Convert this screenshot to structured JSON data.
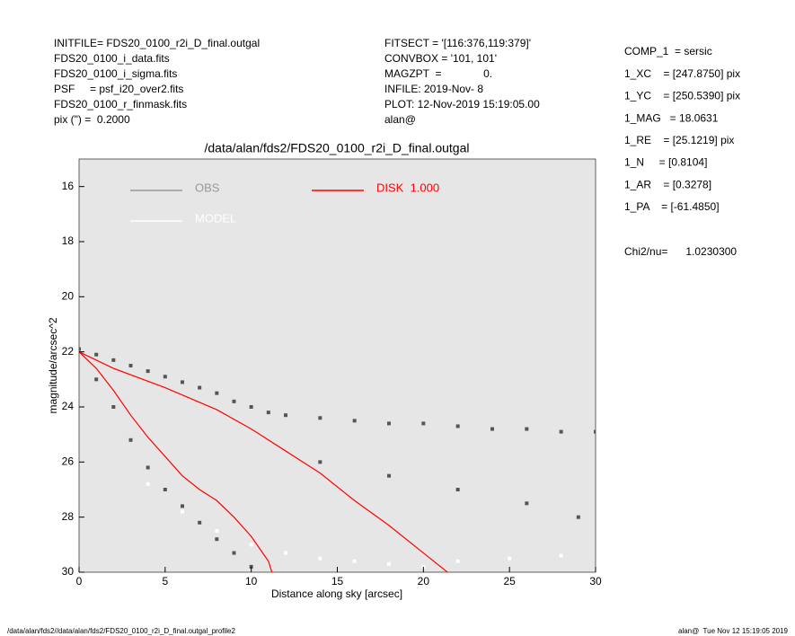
{
  "header": {
    "left": [
      "INITFILE= FDS20_0100_r2i_D_final.outgal",
      "FDS20_0100_i_data.fits",
      "FDS20_0100_i_sigma.fits",
      "PSF     = psf_i20_over2.fits",
      "FDS20_0100_r_finmask.fits",
      "pix (\") =  0.2000"
    ],
    "middle": [
      "FITSECT = '[116:376,119:379]'",
      "CONVBOX = '101, 101'",
      "MAGZPT  =              0.",
      "INFILE: 2019-Nov- 8",
      "PLOT: 12-Nov-2019 15:19:05.00",
      "alan@"
    ],
    "right": [
      "COMP_1  = sersic",
      "1_XC    = [247.8750] pix",
      "1_YC    = [250.5390] pix",
      "1_MAG   = 18.0631",
      "1_RE    = [25.1219] pix",
      "1_N     = [0.8104]",
      "1_AR    = [0.3278]",
      "1_PA    = [-61.4850]"
    ],
    "chi": "Chi2/nu=      1.0230300"
  },
  "footer": {
    "left": "/data/alan/fds2//data/alan/fds2/FDS20_0100_r2i_D_final.outgal_profile2",
    "right": "alan@  Tue Nov 12 15:19:05 2019"
  },
  "chart_data": {
    "type": "scatter",
    "title": "/data/alan/fds2/FDS20_0100_r2i_D_final.outgal",
    "xlabel": "Distance along sky [arcsec]",
    "ylabel": "magnitude/arcsec^2",
    "xlim": [
      0,
      30
    ],
    "xticks": [
      0,
      5,
      10,
      15,
      20,
      25,
      30
    ],
    "ylim": [
      30,
      15
    ],
    "yticks": [
      16,
      18,
      20,
      22,
      24,
      26,
      28,
      30
    ],
    "background": "#e6e6e6",
    "series": [
      {
        "name": "OBS",
        "color": "#555555",
        "legend_color": "#999999",
        "style": "points",
        "x": [
          0,
          1,
          2,
          3,
          4,
          5,
          6,
          7,
          8,
          9,
          10,
          11,
          12,
          14,
          16,
          18,
          20,
          22,
          24,
          26,
          28,
          30,
          1,
          2,
          3,
          4,
          5,
          6,
          7,
          8,
          9,
          10,
          14,
          18,
          22,
          26,
          29
        ],
        "values": [
          21.9,
          22.1,
          22.3,
          22.5,
          22.7,
          22.9,
          23.1,
          23.3,
          23.5,
          23.8,
          24.0,
          24.2,
          24.3,
          24.4,
          24.5,
          24.6,
          24.6,
          24.7,
          24.8,
          24.8,
          24.9,
          24.9,
          23.0,
          24.0,
          25.2,
          26.2,
          27.0,
          27.6,
          28.2,
          28.8,
          29.3,
          29.8,
          26.0,
          26.5,
          27.0,
          27.5,
          28.0
        ]
      },
      {
        "name": "MODEL",
        "color": "#ffffff",
        "legend_color": "#ffffff",
        "style": "points",
        "x": [
          4,
          6,
          8,
          10,
          12,
          14,
          16,
          18,
          20,
          22,
          25,
          28
        ],
        "values": [
          26.8,
          27.8,
          28.5,
          29.0,
          29.3,
          29.5,
          29.6,
          29.7,
          29.8,
          29.6,
          29.5,
          29.4
        ]
      },
      {
        "name": "DISK  1.000",
        "color": "#ff0000",
        "legend_color": "#ff0000",
        "style": "line",
        "x": [
          0,
          2,
          5,
          8,
          10,
          12,
          14,
          16,
          18,
          20,
          21.4,
          null,
          0,
          1,
          2,
          3,
          4,
          5,
          6,
          7,
          8,
          9,
          10,
          11,
          11.2
        ],
        "values": [
          22,
          22.6,
          23.3,
          24.1,
          24.8,
          25.6,
          26.4,
          27.4,
          28.3,
          29.3,
          30,
          null,
          22,
          22.6,
          23.4,
          24.3,
          25.1,
          25.8,
          26.5,
          27.0,
          27.4,
          28,
          28.7,
          29.6,
          30
        ]
      }
    ]
  }
}
